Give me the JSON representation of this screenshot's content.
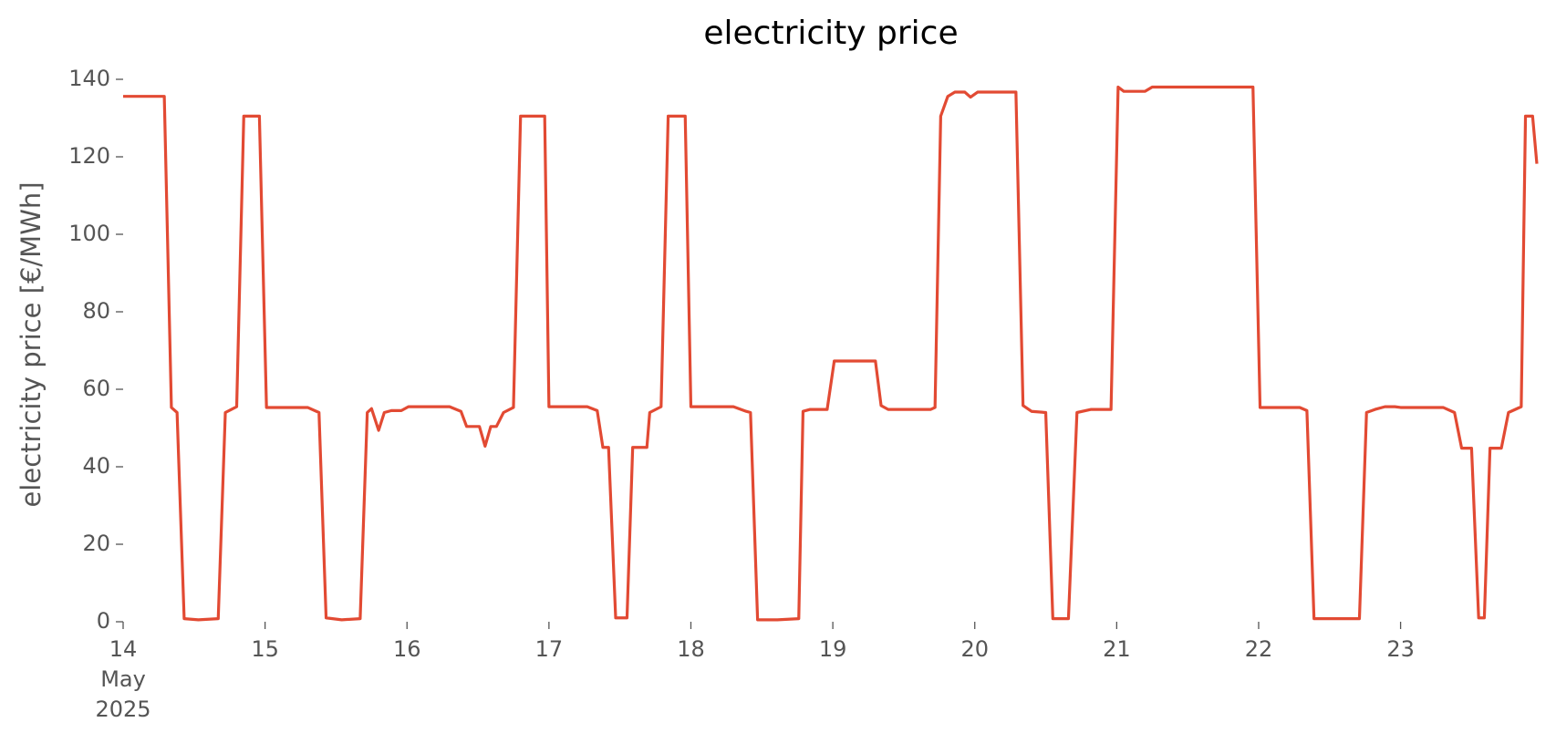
{
  "chart_data": {
    "type": "line",
    "title": "electricity price",
    "ylabel": "electricity price [€/MWh]",
    "x": [
      14.0,
      14.29,
      14.34,
      14.38,
      14.43,
      14.53,
      14.67,
      14.72,
      14.8,
      14.85,
      14.96,
      15.01,
      15.3,
      15.38,
      15.43,
      15.54,
      15.67,
      15.72,
      15.75,
      15.8,
      15.84,
      15.89,
      15.96,
      16.01,
      16.3,
      16.38,
      16.42,
      16.51,
      16.55,
      16.59,
      16.63,
      16.68,
      16.75,
      16.8,
      16.97,
      17.0,
      17.27,
      17.34,
      17.38,
      17.42,
      17.47,
      17.55,
      17.59,
      17.69,
      17.71,
      17.79,
      17.84,
      17.96,
      18.0,
      18.3,
      18.39,
      18.42,
      18.47,
      18.61,
      18.76,
      18.79,
      18.84,
      18.96,
      19.01,
      19.3,
      19.34,
      19.39,
      19.69,
      19.72,
      19.76,
      19.81,
      19.86,
      19.93,
      19.97,
      20.02,
      20.29,
      20.34,
      20.4,
      20.5,
      20.55,
      20.66,
      20.72,
      20.82,
      20.96,
      21.01,
      21.05,
      21.2,
      21.25,
      21.96,
      22.01,
      22.29,
      22.34,
      22.39,
      22.71,
      22.76,
      22.82,
      22.89,
      22.96,
      23.0,
      23.3,
      23.38,
      23.43,
      23.5,
      23.55,
      23.59,
      23.63,
      23.71,
      23.76,
      23.85,
      23.88,
      23.93,
      23.96
    ],
    "series": [
      {
        "name": "electricity price",
        "color": "#e24a33",
        "values": [
          135.6,
          135.6,
          55.3,
          54,
          0.8,
          0.5,
          0.8,
          54,
          55.5,
          130.5,
          130.5,
          55.3,
          55.3,
          54,
          1,
          0.5,
          0.8,
          54,
          55,
          49.4,
          54,
          54.5,
          54.5,
          55.5,
          55.5,
          54.3,
          50.4,
          50.4,
          45.3,
          50.4,
          50.4,
          54,
          55.3,
          130.5,
          130.5,
          55.5,
          55.5,
          54.5,
          45,
          45,
          1,
          1,
          45,
          45,
          54,
          55.5,
          130.5,
          130.5,
          55.5,
          55.5,
          54.3,
          54,
          0.5,
          0.5,
          0.8,
          54.3,
          54.8,
          54.8,
          67.3,
          67.3,
          55.8,
          54.8,
          54.8,
          55.3,
          130.5,
          135.6,
          136.7,
          136.7,
          135.4,
          136.7,
          136.7,
          55.8,
          54.3,
          54,
          0.8,
          0.8,
          54,
          54.8,
          54.8,
          138,
          136.9,
          136.9,
          138,
          138,
          55.3,
          55.3,
          54.5,
          0.8,
          0.8,
          54,
          54.8,
          55.5,
          55.5,
          55.3,
          55.3,
          54,
          44.8,
          44.8,
          1,
          1,
          44.8,
          44.8,
          54,
          55.5,
          130.5,
          130.5,
          118.2
        ]
      }
    ],
    "xlim": [
      14,
      23.96
    ],
    "ylim": [
      0,
      140
    ],
    "xticks": [
      {
        "value": 14,
        "label": "14\nMay\n2025"
      },
      15,
      16,
      17,
      18,
      19,
      20,
      21,
      22,
      23
    ],
    "yticks": [
      0,
      20,
      40,
      60,
      80,
      100,
      120,
      140
    ],
    "grid": false
  }
}
